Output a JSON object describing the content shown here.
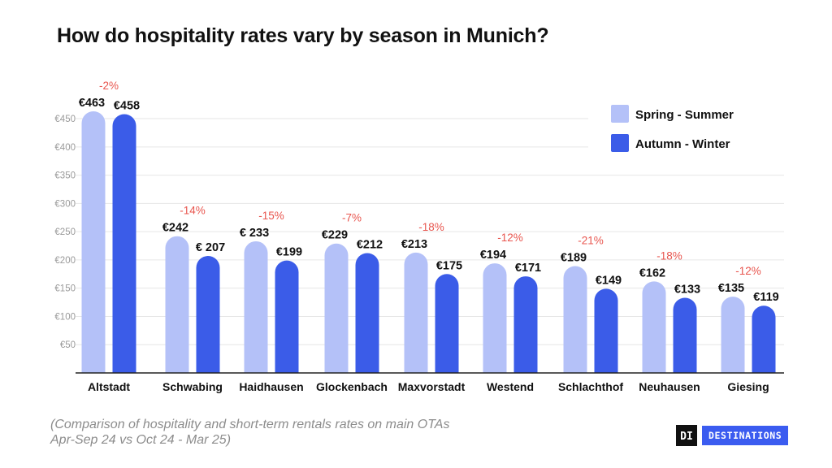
{
  "chart_data": {
    "type": "bar",
    "title": "How do hospitality rates vary by season in Munich?",
    "categories": [
      "Altstadt",
      "Schwabing",
      "Haidhausen",
      "Glockenbach",
      "Maxvorstadt",
      "Westend",
      "Schlachthof",
      "Neuhausen",
      "Giesing"
    ],
    "series": [
      {
        "name": "Spring - Summer",
        "color": "#b4c1f8",
        "values": [
          463,
          242,
          233,
          229,
          213,
          194,
          189,
          162,
          135
        ],
        "labels": [
          "€463",
          "€242",
          "€ 233",
          "€229",
          "€213",
          "€194",
          "€189",
          "€162",
          "€135"
        ]
      },
      {
        "name": "Autumn - Winter",
        "color": "#3b5ce8",
        "values": [
          458,
          207,
          199,
          212,
          175,
          171,
          149,
          133,
          119
        ],
        "labels": [
          "€458",
          "€ 207",
          "€199",
          "€212",
          "€175",
          "€171",
          "€149",
          "€133",
          "€119"
        ]
      }
    ],
    "change_labels": [
      "-2%",
      "-14%",
      "-15%",
      "-7%",
      "-18%",
      "-12%",
      "-21%",
      "-18%",
      "-12%"
    ],
    "change_color": "#e8554e",
    "y_ticks": [
      50,
      100,
      150,
      200,
      250,
      300,
      350,
      400,
      450
    ],
    "y_tick_labels": [
      "€50",
      "€100",
      "€150",
      "€200",
      "€250",
      "€300",
      "€350",
      "€400",
      "€450"
    ],
    "ylim": [
      0,
      463
    ],
    "grid": true,
    "legend_position": "top-right"
  },
  "note": {
    "line1": "(Comparison of hospitality and short-term rentals rates on main OTAs",
    "line2": "Apr-Sep 24 vs Oct 24 - Mar 25)"
  },
  "logo": {
    "mark": "DI",
    "text": "DESTINATIONS"
  }
}
